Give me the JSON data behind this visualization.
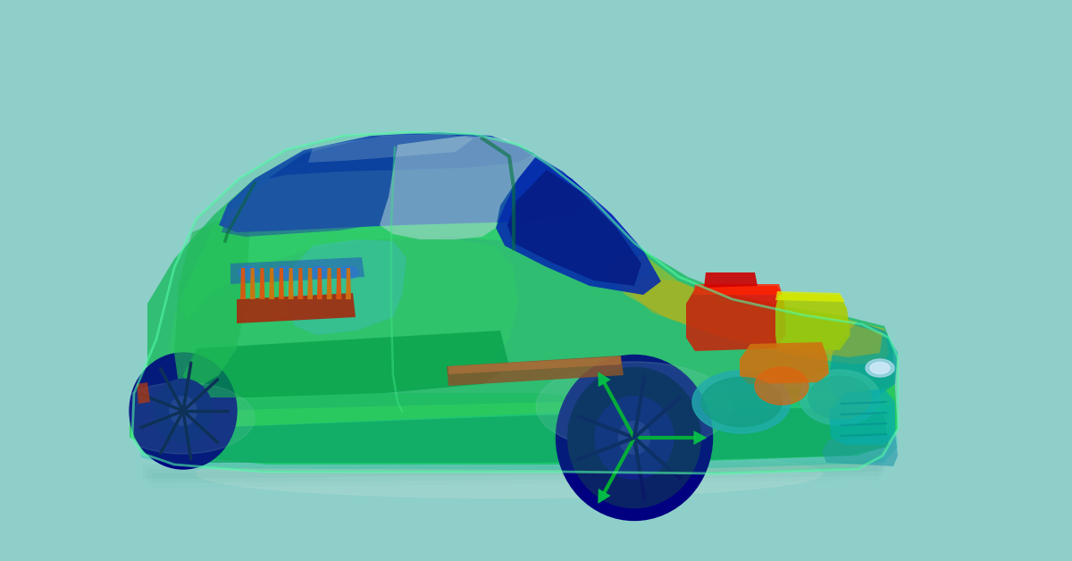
{
  "background_color": "#8ECFCA",
  "fig_width": 12.0,
  "fig_height": 6.28,
  "dpi": 100,
  "colors": {
    "dark_blue": "#0000AA",
    "navy": "#000080",
    "mid_blue": "#1133CC",
    "cool_blue": "#2255DD",
    "teal_blue": "#0088BB",
    "teal": "#00BBAA",
    "cyan_teal": "#00CCBB",
    "green": "#22CC55",
    "bright_green": "#33EE66",
    "yellow_green": "#88CC22",
    "yellow": "#CCCC00",
    "orange_yellow": "#DDAA00",
    "orange": "#EE7700",
    "dark_orange": "#CC5500",
    "red_orange": "#EE3300",
    "red": "#CC1100",
    "dark_red": "#AA0000",
    "light_teal": "#AADDDD",
    "body_green": "#22BB66",
    "body_green2": "#33CC77",
    "shadow": "#A8D8D0"
  }
}
